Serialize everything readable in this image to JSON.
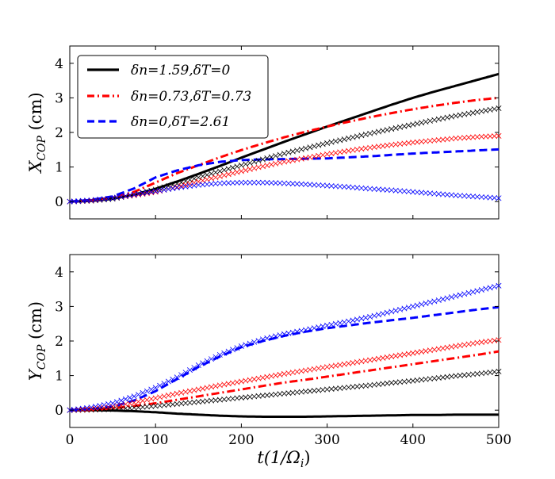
{
  "chart_data": [
    {
      "type": "line",
      "panel": "top",
      "ylabel_main": "X",
      "ylabel_sub": "COP",
      "ylabel_unit": " (cm)",
      "xlim": [
        0,
        500
      ],
      "ylim": [
        -0.5,
        4.5
      ],
      "yticks": [
        0,
        1,
        2,
        3,
        4
      ],
      "xticks": [
        0,
        100,
        200,
        300,
        400,
        500
      ],
      "legend_position": "top-left",
      "series": [
        {
          "name": "δn=1.59,δT=0",
          "color": "#000000",
          "style": "solid",
          "x": [
            0,
            25,
            50,
            75,
            100,
            125,
            150,
            175,
            200,
            225,
            250,
            275,
            300,
            325,
            350,
            375,
            400,
            425,
            450,
            475,
            500
          ],
          "y": [
            0,
            0.02,
            0.08,
            0.2,
            0.37,
            0.58,
            0.8,
            1.03,
            1.27,
            1.5,
            1.73,
            1.95,
            2.17,
            2.38,
            2.59,
            2.8,
            3.0,
            3.18,
            3.35,
            3.52,
            3.69
          ]
        },
        {
          "name": "δn=0.73,δT=0.73",
          "color": "#ff0000",
          "style": "dashdot",
          "x": [
            0,
            25,
            50,
            75,
            100,
            125,
            150,
            175,
            200,
            225,
            250,
            275,
            300,
            325,
            350,
            375,
            400,
            425,
            450,
            475,
            500
          ],
          "y": [
            0,
            0.04,
            0.12,
            0.28,
            0.55,
            0.82,
            1.05,
            1.28,
            1.49,
            1.68,
            1.86,
            2.02,
            2.17,
            2.31,
            2.44,
            2.56,
            2.67,
            2.77,
            2.86,
            2.94,
            3.0
          ]
        },
        {
          "name": "δn=0,δT=2.61",
          "color": "#0000ff",
          "style": "dashed",
          "x": [
            0,
            25,
            50,
            75,
            100,
            125,
            150,
            175,
            200,
            225,
            250,
            275,
            300,
            325,
            350,
            375,
            400,
            425,
            450,
            475,
            500
          ],
          "y": [
            0,
            0.05,
            0.15,
            0.38,
            0.7,
            0.9,
            1.05,
            1.15,
            1.2,
            1.22,
            1.23,
            1.24,
            1.25,
            1.28,
            1.31,
            1.35,
            1.39,
            1.42,
            1.45,
            1.48,
            1.51
          ]
        },
        {
          "name": "",
          "color": "#000000",
          "style": "cross",
          "x": [
            0,
            25,
            50,
            75,
            100,
            125,
            150,
            175,
            200,
            225,
            250,
            275,
            300,
            325,
            350,
            375,
            400,
            425,
            450,
            475,
            500
          ],
          "y": [
            0,
            0.02,
            0.08,
            0.2,
            0.35,
            0.52,
            0.7,
            0.88,
            1.05,
            1.22,
            1.39,
            1.54,
            1.69,
            1.83,
            1.97,
            2.1,
            2.23,
            2.36,
            2.48,
            2.59,
            2.7
          ]
        },
        {
          "name": "",
          "color": "#ff0000",
          "style": "cross",
          "x": [
            0,
            25,
            50,
            75,
            100,
            125,
            150,
            175,
            200,
            225,
            250,
            275,
            300,
            325,
            350,
            375,
            400,
            425,
            450,
            475,
            500
          ],
          "y": [
            0,
            0.03,
            0.1,
            0.18,
            0.28,
            0.42,
            0.58,
            0.73,
            0.88,
            1.02,
            1.15,
            1.26,
            1.37,
            1.47,
            1.56,
            1.64,
            1.71,
            1.77,
            1.83,
            1.87,
            1.9
          ]
        },
        {
          "name": "",
          "color": "#0000ff",
          "style": "cross",
          "x": [
            0,
            25,
            50,
            75,
            100,
            125,
            150,
            175,
            200,
            225,
            250,
            275,
            300,
            325,
            350,
            375,
            400,
            425,
            450,
            475,
            500
          ],
          "y": [
            0,
            0.04,
            0.1,
            0.2,
            0.3,
            0.4,
            0.48,
            0.53,
            0.55,
            0.55,
            0.53,
            0.5,
            0.46,
            0.42,
            0.37,
            0.33,
            0.28,
            0.23,
            0.18,
            0.14,
            0.1
          ]
        }
      ]
    },
    {
      "type": "line",
      "panel": "bottom",
      "ylabel_main": "Y",
      "ylabel_sub": "COP",
      "ylabel_unit": " (cm)",
      "xlabel_main": "t(1/Ω",
      "xlabel_sub": "i",
      "xlabel_close": ")",
      "xlim": [
        0,
        500
      ],
      "ylim": [
        -0.5,
        4.5
      ],
      "yticks": [
        0,
        1,
        2,
        3,
        4
      ],
      "xticks": [
        0,
        100,
        200,
        300,
        400,
        500
      ],
      "series": [
        {
          "name": "δn=1.59,δT=0",
          "color": "#000000",
          "style": "solid",
          "x": [
            0,
            25,
            50,
            75,
            100,
            125,
            150,
            175,
            200,
            225,
            250,
            275,
            300,
            325,
            350,
            375,
            400,
            425,
            450,
            475,
            500
          ],
          "y": [
            0,
            0,
            -0.01,
            -0.03,
            -0.06,
            -0.1,
            -0.13,
            -0.16,
            -0.18,
            -0.19,
            -0.19,
            -0.19,
            -0.18,
            -0.17,
            -0.16,
            -0.15,
            -0.14,
            -0.14,
            -0.13,
            -0.13,
            -0.13
          ]
        },
        {
          "name": "δn=0.73,δT=0.73",
          "color": "#ff0000",
          "style": "dashdot",
          "x": [
            0,
            25,
            50,
            75,
            100,
            125,
            150,
            175,
            200,
            225,
            250,
            275,
            300,
            325,
            350,
            375,
            400,
            425,
            450,
            475,
            500
          ],
          "y": [
            0,
            0.01,
            0.05,
            0.12,
            0.2,
            0.3,
            0.4,
            0.5,
            0.6,
            0.7,
            0.8,
            0.88,
            0.97,
            1.06,
            1.15,
            1.24,
            1.33,
            1.42,
            1.51,
            1.6,
            1.7
          ]
        },
        {
          "name": "δn=0,δT=2.61",
          "color": "#0000ff",
          "style": "dashed",
          "x": [
            0,
            25,
            50,
            75,
            100,
            125,
            150,
            175,
            200,
            225,
            250,
            275,
            300,
            325,
            350,
            375,
            400,
            425,
            450,
            475,
            500
          ],
          "y": [
            0,
            0.02,
            0.1,
            0.28,
            0.55,
            0.9,
            1.25,
            1.55,
            1.82,
            2.0,
            2.15,
            2.27,
            2.37,
            2.45,
            2.53,
            2.6,
            2.67,
            2.75,
            2.83,
            2.91,
            2.98
          ]
        },
        {
          "name": "",
          "color": "#000000",
          "style": "cross",
          "x": [
            0,
            25,
            50,
            75,
            100,
            125,
            150,
            175,
            200,
            225,
            250,
            275,
            300,
            325,
            350,
            375,
            400,
            425,
            450,
            475,
            500
          ],
          "y": [
            0,
            0.01,
            0.03,
            0.07,
            0.12,
            0.18,
            0.24,
            0.3,
            0.36,
            0.42,
            0.48,
            0.54,
            0.6,
            0.66,
            0.72,
            0.79,
            0.85,
            0.92,
            0.99,
            1.05,
            1.12
          ]
        },
        {
          "name": "",
          "color": "#ff0000",
          "style": "cross",
          "x": [
            0,
            25,
            50,
            75,
            100,
            125,
            150,
            175,
            200,
            225,
            250,
            275,
            300,
            325,
            350,
            375,
            400,
            425,
            450,
            475,
            500
          ],
          "y": [
            0,
            0.03,
            0.1,
            0.22,
            0.35,
            0.48,
            0.6,
            0.72,
            0.83,
            0.94,
            1.05,
            1.15,
            1.25,
            1.35,
            1.45,
            1.55,
            1.65,
            1.75,
            1.85,
            1.95,
            2.03
          ]
        },
        {
          "name": "",
          "color": "#0000ff",
          "style": "cross",
          "x": [
            0,
            25,
            50,
            75,
            100,
            125,
            150,
            175,
            200,
            225,
            250,
            275,
            300,
            325,
            350,
            375,
            400,
            425,
            450,
            475,
            500
          ],
          "y": [
            0,
            0.08,
            0.2,
            0.4,
            0.65,
            0.95,
            1.3,
            1.6,
            1.85,
            2.05,
            2.2,
            2.32,
            2.45,
            2.57,
            2.7,
            2.85,
            3.0,
            3.15,
            3.3,
            3.45,
            3.6
          ]
        }
      ]
    }
  ]
}
